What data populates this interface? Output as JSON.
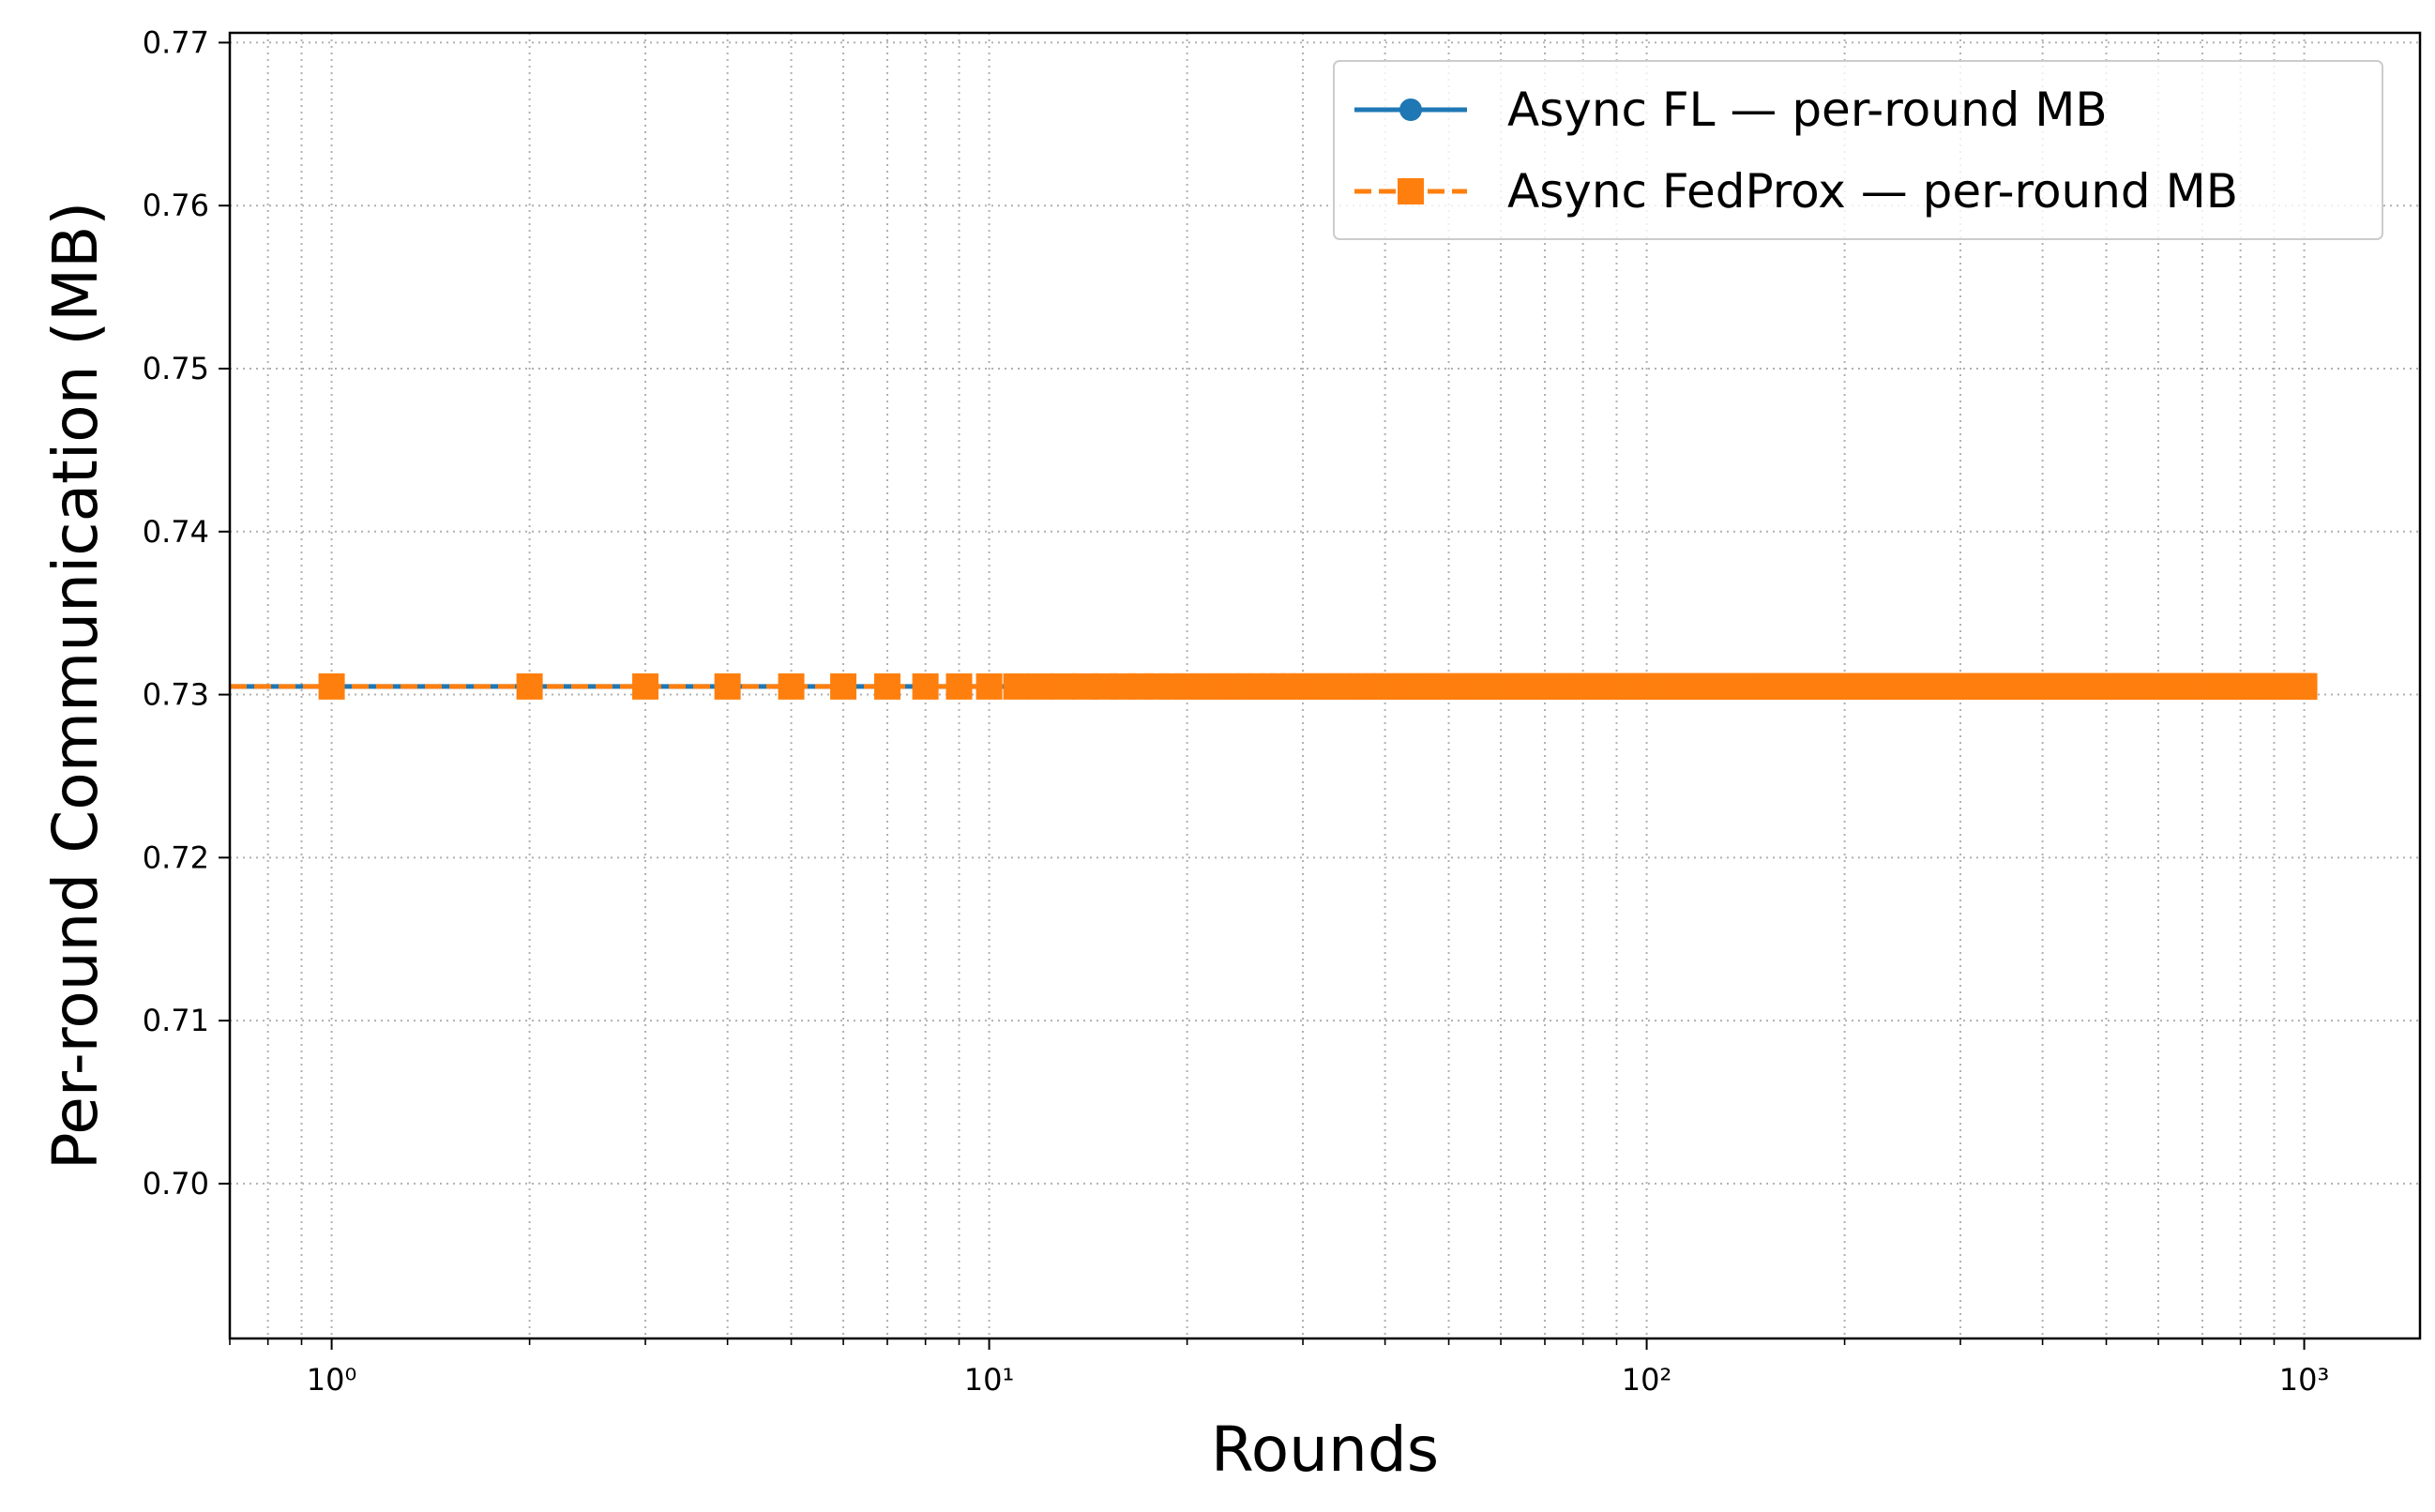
{
  "chart_data": {
    "type": "line",
    "xlabel": "Rounds",
    "ylabel": "Per-round Communication (MB)",
    "xscale": "log",
    "xlim": [
      0.7,
      1500
    ],
    "ylim": [
      0.6905,
      0.7706
    ],
    "grid": true,
    "legend_position": "top-right",
    "x_ticks": [
      {
        "value": 1,
        "label": "10⁰"
      },
      {
        "value": 10,
        "label": "10¹"
      },
      {
        "value": 100,
        "label": "10²"
      },
      {
        "value": 1000,
        "label": "10³"
      }
    ],
    "y_ticks": [
      {
        "value": 0.7,
        "label": "0.70"
      },
      {
        "value": 0.71,
        "label": "0.71"
      },
      {
        "value": 0.72,
        "label": "0.72"
      },
      {
        "value": 0.73,
        "label": "0.73"
      },
      {
        "value": 0.74,
        "label": "0.74"
      },
      {
        "value": 0.75,
        "label": "0.75"
      },
      {
        "value": 0.76,
        "label": "0.76"
      },
      {
        "value": 0.77,
        "label": "0.77"
      }
    ],
    "series": [
      {
        "name": "Async FL — per-round MB",
        "color": "#1f77b4",
        "line_style": "solid",
        "marker": "circle",
        "x_start": 1,
        "x_end": 1000,
        "value": 0.7305
      },
      {
        "name": "Async FedProx — per-round MB",
        "color": "#ff7f0e",
        "line_style": "dashed",
        "marker": "square",
        "x_start": 1,
        "x_end": 1000,
        "value": 0.7305
      }
    ]
  }
}
